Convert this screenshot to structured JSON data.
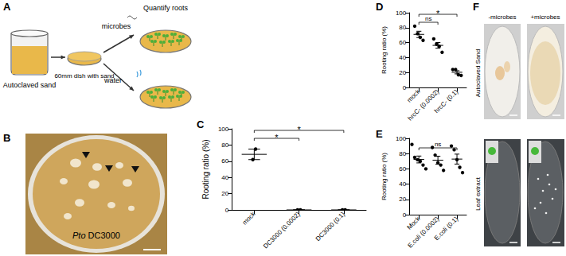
{
  "panel_a": {
    "panel": "A",
    "steps": [
      "Autoclaved sand",
      "60mm dish with sand"
    ],
    "treatments": [
      "microbes",
      "water"
    ],
    "readout": "Quantify roots"
  },
  "panel_b": {
    "panel": "B",
    "label": "Pto DC3000"
  },
  "panel_f": {
    "panel": "F",
    "columns": [
      "-microbes",
      "+microbes"
    ],
    "rows": [
      "Autoclaved Sand",
      "Leaf extract"
    ]
  },
  "chart_data": [
    {
      "panel": "C",
      "type": "scatter",
      "ylabel": "Rooting ratio (%)",
      "categories": [
        "mock",
        "DC3000 (0.0002)",
        "DC3000 (0.1)"
      ],
      "values": [
        [
          62,
          75
        ],
        [
          0,
          0
        ],
        [
          0,
          0
        ]
      ],
      "means": [
        68.5,
        0,
        0
      ],
      "errors": [
        6.5,
        0,
        0
      ],
      "ylim": [
        0,
        100
      ],
      "yticks": [
        0,
        20,
        40,
        60,
        80,
        100
      ],
      "annotations": [
        {
          "from": 0,
          "to": 1,
          "text": "*"
        },
        {
          "from": 0,
          "to": 2,
          "text": "*"
        }
      ]
    },
    {
      "panel": "D",
      "type": "scatter",
      "ylabel": "Rooting ratio (%)",
      "categories": [
        "mock",
        "hrcC- (0.0002)",
        "hrcC- (0.1)"
      ],
      "values": [
        [
          82,
          72,
          67,
          63
        ],
        [
          65,
          58,
          55,
          47
        ],
        [
          24,
          24,
          17,
          16
        ]
      ],
      "means": [
        71,
        56.3,
        20.3
      ],
      "errors": [
        4.2,
        3.8,
        2.1
      ],
      "ylim": [
        0,
        100
      ],
      "yticks": [
        0,
        20,
        40,
        60,
        80,
        100
      ],
      "annotations": [
        {
          "from": 0,
          "to": 1,
          "text": "ns"
        },
        {
          "from": 0,
          "to": 2,
          "text": "*"
        }
      ]
    },
    {
      "panel": "E",
      "type": "scatter",
      "ylabel": "Rooting ratio (%)",
      "categories": [
        "Mock",
        "E.coli (0.0002)",
        "E.coli (0.1)"
      ],
      "values": [
        [
          92,
          75,
          72,
          70,
          65,
          60
        ],
        [
          88,
          78,
          68,
          65,
          58
        ],
        [
          90,
          85,
          72,
          62,
          55
        ]
      ],
      "means": [
        72.3,
        71.4,
        72.8
      ],
      "errors": [
        4.5,
        5.2,
        6.5
      ],
      "ylim": [
        0,
        100
      ],
      "yticks": [
        0,
        20,
        40,
        60,
        80,
        100
      ],
      "annotations": [
        {
          "from": 0,
          "to": 2,
          "text": "ns"
        }
      ]
    }
  ]
}
